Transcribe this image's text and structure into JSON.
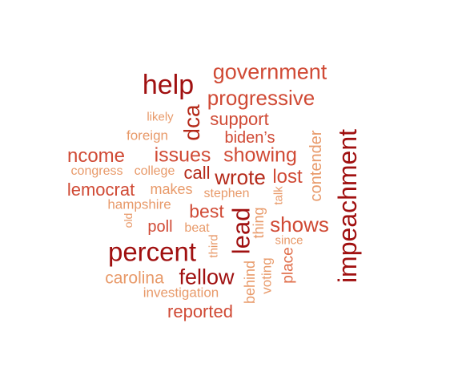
{
  "palette": {
    "darkest": "#a01010",
    "dark": "#b52a1a",
    "medium": "#d04a35",
    "light": "#e06e4a",
    "lightest": "#e89a6a"
  },
  "words": [
    {
      "text": "government",
      "color": "#d04a35"
    },
    {
      "text": "help",
      "color": "#a01010"
    },
    {
      "text": "progressive",
      "color": "#d04a35"
    },
    {
      "text": "likely",
      "color": "#e89a6a"
    },
    {
      "text": "dca",
      "color": "#b52a1a"
    },
    {
      "text": "support",
      "color": "#d04a35"
    },
    {
      "text": "foreign",
      "color": "#e89a6a"
    },
    {
      "text": "biden’s",
      "color": "#d04a35"
    },
    {
      "text": "impeachment",
      "color": "#a01010"
    },
    {
      "text": "contender",
      "color": "#e89a6a"
    },
    {
      "text": "ncome",
      "color": "#d04a35"
    },
    {
      "text": "issues",
      "color": "#d04a35"
    },
    {
      "text": "showing",
      "color": "#d04a35"
    },
    {
      "text": "congress",
      "color": "#e89a6a"
    },
    {
      "text": "college",
      "color": "#e89a6a"
    },
    {
      "text": "call",
      "color": "#b52a1a"
    },
    {
      "text": "wrote",
      "color": "#b52a1a"
    },
    {
      "text": "lost",
      "color": "#d04a35"
    },
    {
      "text": "lemocrat",
      "color": "#d04a35"
    },
    {
      "text": "makes",
      "color": "#e89a6a"
    },
    {
      "text": "stephen",
      "color": "#e89a6a"
    },
    {
      "text": "talk",
      "color": "#e89a6a"
    },
    {
      "text": "hampshire",
      "color": "#e89a6a"
    },
    {
      "text": "best",
      "color": "#d04a35"
    },
    {
      "text": "lead",
      "color": "#a01010"
    },
    {
      "text": "thing",
      "color": "#e89a6a"
    },
    {
      "text": "shows",
      "color": "#d04a35"
    },
    {
      "text": "old",
      "color": "#e89a6a"
    },
    {
      "text": "poll",
      "color": "#d04a35"
    },
    {
      "text": "beat",
      "color": "#e89a6a"
    },
    {
      "text": "since",
      "color": "#e89a6a"
    },
    {
      "text": "third",
      "color": "#e89a6a"
    },
    {
      "text": "percent",
      "color": "#a01010"
    },
    {
      "text": "place",
      "color": "#e06e4a"
    },
    {
      "text": "voting",
      "color": "#e89a6a"
    },
    {
      "text": "behind",
      "color": "#e89a6a"
    },
    {
      "text": "carolina",
      "color": "#e89a6a"
    },
    {
      "text": "fellow",
      "color": "#a01010"
    },
    {
      "text": "investigation",
      "color": "#e89a6a"
    },
    {
      "text": "reported",
      "color": "#d04a35"
    }
  ]
}
